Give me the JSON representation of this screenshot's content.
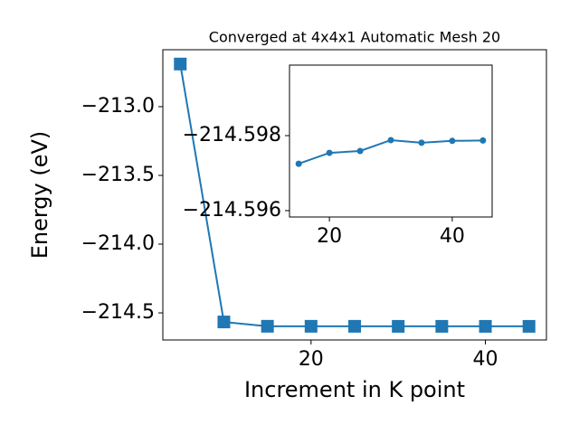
{
  "chart_data": [
    {
      "type": "line",
      "title": "Converged at 4x4x1 Automatic Mesh 20",
      "x_label": "Increment in K point",
      "y_label": "Energy (eV)",
      "x": [
        5,
        10,
        15,
        20,
        25,
        30,
        35,
        40,
        45
      ],
      "series": [
        {
          "color": "#1f77b4",
          "marker": "square",
          "values": [
            -212.69,
            -214.566,
            -214.5973,
            -214.5975,
            -214.5976,
            -214.5979,
            -214.5978,
            -214.5979,
            -214.5979
          ]
        }
      ],
      "xlim": [
        3,
        47
      ],
      "ylim": [
        -214.697,
        -212.586
      ],
      "xticks": [
        20,
        40
      ],
      "yticks": [
        {
          "value": -213,
          "label": "−213.0"
        },
        {
          "value": -213.5,
          "label": "−213.5"
        },
        {
          "value": -214,
          "label": "−214.0"
        },
        {
          "value": -214.5,
          "label": "−214.5"
        }
      ]
    },
    {
      "type": "line",
      "x": [
        15,
        20,
        25,
        30,
        35,
        40,
        45
      ],
      "series": [
        {
          "color": "#1f77b4",
          "marker": "circle",
          "values": [
            -214.59725,
            -214.59754,
            -214.59759,
            -214.59788,
            -214.59781,
            -214.59786,
            -214.59787
          ]
        }
      ],
      "xlim": [
        13.5,
        46.5
      ],
      "ylim": [
        -214.59583,
        -214.59988
      ],
      "xticks": [
        20,
        40
      ],
      "yticks": [
        {
          "value": -214.598,
          "label": "−214.598"
        },
        {
          "value": -214.596,
          "label": "−214.596"
        }
      ]
    }
  ]
}
